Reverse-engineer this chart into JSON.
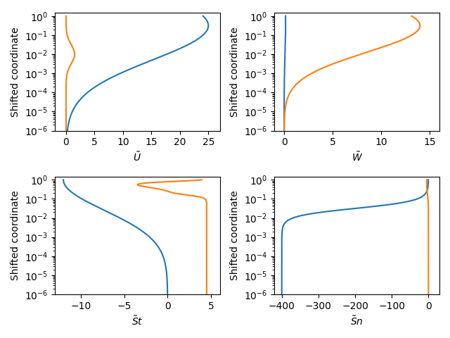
{
  "ylim": [
    1e-06,
    1.5
  ],
  "ylabel": "Shifted coordinate",
  "blue_color": "#1f77b4",
  "orange_color": "#ff7f0e",
  "subplots": [
    {
      "xlabel": "$\\tilde{U}$",
      "xlim": [
        -2,
        27
      ],
      "xticks": [
        0,
        5,
        10,
        15,
        20,
        25
      ]
    },
    {
      "xlabel": "$\\tilde{W}$",
      "xlim": [
        -1,
        16
      ],
      "xticks": [
        0,
        5,
        10,
        15
      ]
    },
    {
      "xlabel": "$\\tilde{S}t$",
      "xlim": [
        -13,
        6
      ],
      "xticks": [
        -10,
        -5,
        0,
        5
      ]
    },
    {
      "xlabel": "$\\tilde{S}n$",
      "xlim": [
        -420,
        30
      ],
      "xticks": [
        -400,
        -300,
        -200,
        -100,
        0
      ]
    }
  ]
}
